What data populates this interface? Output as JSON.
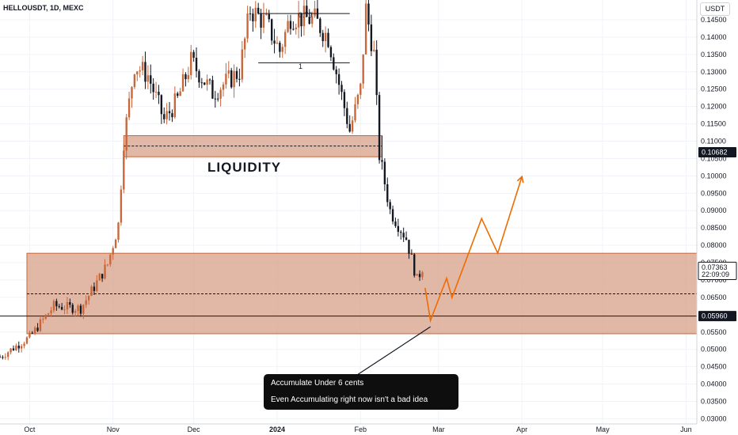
{
  "header": {
    "symbol_title": "HELLOUSDT, 1D, MEXC"
  },
  "price_axis": {
    "currency": "USDT",
    "ticks": [
      "0.14500",
      "0.14000",
      "0.13500",
      "0.13000",
      "0.12500",
      "0.12000",
      "0.11500",
      "0.11000",
      "0.10500",
      "0.10000",
      "0.09500",
      "0.09000",
      "0.08500",
      "0.08000",
      "0.07500",
      "0.07000",
      "0.06500",
      "0.06000",
      "0.05500",
      "0.05000",
      "0.04500",
      "0.04000",
      "0.03500",
      "0.03000"
    ],
    "badges": {
      "liquidity_price": "0.10682",
      "last_price": "0.07363",
      "countdown": "22:09:09",
      "support_price": "0.05960"
    }
  },
  "time_axis": {
    "ticks": [
      "Oct",
      "Nov",
      "Dec",
      "2024",
      "Feb",
      "Mar",
      "Apr",
      "May",
      "Jun"
    ]
  },
  "annotations": {
    "liquidity_label": "LIQUIDITY",
    "fib_label_1": "0.79",
    "fib_label_2": "1",
    "callout_line_1": "Accumulate Under 6 cents",
    "callout_line_2": "Even Accumulating right now isn't a bad idea"
  },
  "colors": {
    "candle_up": "#c8673a",
    "candle_down": "#131722",
    "zone_fill": "#d9a58f",
    "zone_border": "#c8673a",
    "projection": "#ef6c00",
    "badge_dark": "#131722"
  },
  "chart_data": {
    "type": "candlestick",
    "title": "HELLOUSDT, 1D, MEXC",
    "price_scale": "linear",
    "ylim": [
      0.0285,
      0.1507
    ],
    "x_range": [
      "2023-09-20",
      "2024-06-05"
    ],
    "zones": [
      {
        "name": "liquidity",
        "from": 0.1055,
        "to": 0.1116,
        "midline": 0.1086
      },
      {
        "name": "accumulation",
        "from": 0.0545,
        "to": 0.0777,
        "midline": 0.066
      }
    ],
    "horizontal_lines": [
      0.0596
    ],
    "fib_levels": [
      {
        "label": "0.79",
        "price": 0.1468
      },
      {
        "label": "1",
        "price": 0.1326
      }
    ],
    "projection_path": [
      {
        "date": "2024-02-25",
        "price": 0.0677
      },
      {
        "date": "2024-02-27",
        "price": 0.0583
      },
      {
        "date": "2024-03-04",
        "price": 0.0705
      },
      {
        "date": "2024-03-06",
        "price": 0.0649
      },
      {
        "date": "2024-03-17",
        "price": 0.0877
      },
      {
        "date": "2024-03-23",
        "price": 0.0777
      },
      {
        "date": "2024-04-01",
        "price": 0.0998
      }
    ],
    "waypoints": [
      {
        "date": "2023-09-20",
        "price": 0.0478
      },
      {
        "date": "2023-10-01",
        "price": 0.0535
      },
      {
        "date": "2023-10-10",
        "price": 0.0625
      },
      {
        "date": "2023-10-20",
        "price": 0.0618
      },
      {
        "date": "2023-10-25",
        "price": 0.068
      },
      {
        "date": "2023-10-30",
        "price": 0.0745
      },
      {
        "date": "2023-11-03",
        "price": 0.086
      },
      {
        "date": "2023-11-05",
        "price": 0.11
      },
      {
        "date": "2023-11-09",
        "price": 0.132
      },
      {
        "date": "2023-11-14",
        "price": 0.129
      },
      {
        "date": "2023-11-20",
        "price": 0.116
      },
      {
        "date": "2023-11-25",
        "price": 0.122
      },
      {
        "date": "2023-11-30",
        "price": 0.133
      },
      {
        "date": "2023-12-08",
        "price": 0.124
      },
      {
        "date": "2023-12-18",
        "price": 0.13
      },
      {
        "date": "2023-12-22",
        "price": 0.148
      },
      {
        "date": "2023-12-28",
        "price": 0.144
      },
      {
        "date": "2024-01-02",
        "price": 0.136
      },
      {
        "date": "2024-01-06",
        "price": 0.146
      },
      {
        "date": "2024-01-15",
        "price": 0.145
      },
      {
        "date": "2024-01-20",
        "price": 0.14
      },
      {
        "date": "2024-01-28",
        "price": 0.113
      },
      {
        "date": "2024-02-01",
        "price": 0.125
      },
      {
        "date": "2024-02-03",
        "price": 0.148
      },
      {
        "date": "2024-02-06",
        "price": 0.135
      },
      {
        "date": "2024-02-08",
        "price": 0.106
      },
      {
        "date": "2024-02-12",
        "price": 0.09
      },
      {
        "date": "2024-02-18",
        "price": 0.082
      },
      {
        "date": "2024-02-22",
        "price": 0.07
      },
      {
        "date": "2024-02-24",
        "price": 0.0736
      }
    ]
  }
}
